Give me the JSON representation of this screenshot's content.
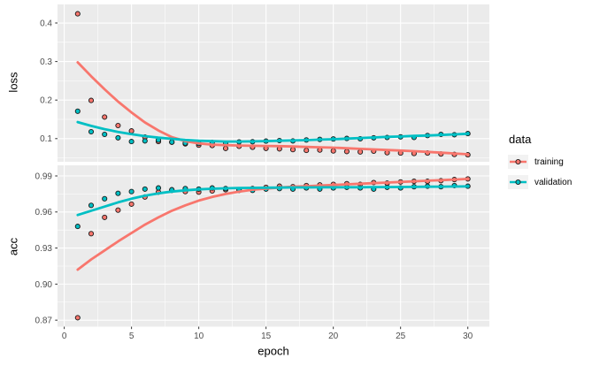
{
  "chart_data": {
    "type": "scatter",
    "smoother": "loess",
    "title": "",
    "xlabel": "epoch",
    "xlim": [
      -0.5,
      31.6
    ],
    "x": [
      1,
      2,
      3,
      4,
      5,
      6,
      7,
      8,
      9,
      10,
      11,
      12,
      13,
      14,
      15,
      16,
      17,
      18,
      19,
      20,
      21,
      22,
      23,
      24,
      25,
      26,
      27,
      28,
      29,
      30
    ],
    "x_ticks": {
      "major": [
        0,
        5,
        10,
        15,
        20,
        25,
        30
      ],
      "labels": [
        "0",
        "5",
        "10",
        "15",
        "20",
        "25",
        "30"
      ],
      "minor": [
        2.5,
        7.5,
        12.5,
        17.5,
        22.5,
        27.5
      ]
    },
    "legend": {
      "title": "data",
      "entries": [
        {
          "label": "training",
          "color": "#F8766D"
        },
        {
          "label": "validation",
          "color": "#00BFC4"
        }
      ]
    },
    "panel_bg": "#EBEBEB",
    "grid_color": "#FFFFFF",
    "tick_color": "#333333",
    "tick_label_color": "#4D4D4D",
    "panels": [
      {
        "name": "loss",
        "ylabel": "loss",
        "ylim": [
          0.0399,
          0.4482
        ],
        "y_ticks": {
          "major": [
            0.1,
            0.2,
            0.3,
            0.4
          ],
          "labels": [
            "0.1",
            "0.2",
            "0.3",
            "0.4"
          ],
          "minor": [
            0.05,
            0.15,
            0.25,
            0.35
          ]
        },
        "series": [
          {
            "name": "training",
            "color": "#F8766D",
            "points": [
              0.424,
              0.199,
              0.156,
              0.134,
              0.12,
              0.104,
              0.0925,
              0.0905,
              0.0865,
              0.083,
              0.082,
              0.0745,
              0.08,
              0.0775,
              0.0745,
              0.0735,
              0.0715,
              0.0695,
              0.0705,
              0.068,
              0.0665,
              0.0655,
              0.0675,
              0.0635,
              0.0625,
              0.0615,
              0.0625,
              0.06,
              0.059,
              0.058
            ],
            "smooth": [
              0.298,
              0.262,
              0.228,
              0.196,
              0.168,
              0.142,
              0.121,
              0.104,
              0.0935,
              0.0875,
              0.0845,
              0.083,
              0.082,
              0.0815,
              0.081,
              0.0805,
              0.0795,
              0.0785,
              0.0775,
              0.0765,
              0.075,
              0.0735,
              0.072,
              0.0705,
              0.069,
              0.0675,
              0.0655,
              0.0635,
              0.0615,
              0.0595
            ]
          },
          {
            "name": "validation",
            "color": "#00BFC4",
            "points": [
              0.171,
              0.118,
              0.111,
              0.102,
              0.0925,
              0.094,
              0.096,
              0.091,
              0.0885,
              0.0875,
              0.09,
              0.088,
              0.0915,
              0.092,
              0.0935,
              0.095,
              0.094,
              0.0965,
              0.098,
              0.099,
              0.1005,
              0.0995,
              0.102,
              0.103,
              0.1045,
              0.103,
              0.108,
              0.111,
              0.11,
              0.113
            ],
            "smooth": [
              0.143,
              0.133,
              0.1245,
              0.1175,
              0.1115,
              0.1065,
              0.1025,
              0.0995,
              0.0965,
              0.0945,
              0.0935,
              0.0925,
              0.0925,
              0.093,
              0.0935,
              0.0945,
              0.0955,
              0.096,
              0.0975,
              0.0985,
              0.1,
              0.1015,
              0.103,
              0.1045,
              0.1055,
              0.107,
              0.108,
              0.1095,
              0.111,
              0.1125
            ]
          }
        ]
      },
      {
        "name": "acc",
        "ylabel": "acc",
        "ylim": [
          0.8646,
          0.99882
        ],
        "y_ticks": {
          "major": [
            0.87,
            0.9,
            0.93,
            0.96,
            0.99
          ],
          "labels": [
            "0.87",
            "0.90",
            "0.93",
            "0.96",
            "0.99"
          ],
          "minor": [
            0.885,
            0.915,
            0.945,
            0.975
          ]
        },
        "series": [
          {
            "name": "training",
            "color": "#F8766D",
            "points": [
              0.872,
              0.942,
              0.9555,
              0.9615,
              0.9665,
              0.9725,
              0.9765,
              0.978,
              0.977,
              0.9765,
              0.9775,
              0.9785,
              0.978,
              0.9795,
              0.9805,
              0.9815,
              0.981,
              0.982,
              0.9825,
              0.983,
              0.9835,
              0.983,
              0.9845,
              0.984,
              0.985,
              0.9855,
              0.9855,
              0.986,
              0.987,
              0.9875
            ],
            "smooth": [
              0.912,
              0.9205,
              0.928,
              0.9355,
              0.9425,
              0.9495,
              0.9555,
              0.961,
              0.9655,
              0.9695,
              0.9725,
              0.975,
              0.977,
              0.9785,
              0.9795,
              0.9803,
              0.981,
              0.9815,
              0.982,
              0.9825,
              0.983,
              0.9835,
              0.984,
              0.9845,
              0.985,
              0.9855,
              0.986,
              0.9865,
              0.987,
              0.9875
            ]
          },
          {
            "name": "validation",
            "color": "#00BFC4",
            "points": [
              0.948,
              0.9655,
              0.971,
              0.9755,
              0.977,
              0.979,
              0.98,
              0.9785,
              0.9795,
              0.979,
              0.98,
              0.9795,
              0.9785,
              0.978,
              0.979,
              0.9795,
              0.979,
              0.98,
              0.979,
              0.98,
              0.9805,
              0.98,
              0.979,
              0.9805,
              0.98,
              0.981,
              0.9815,
              0.981,
              0.982,
              0.9815
            ],
            "smooth": [
              0.9575,
              0.961,
              0.9645,
              0.968,
              0.971,
              0.9735,
              0.9755,
              0.977,
              0.978,
              0.9788,
              0.9793,
              0.9797,
              0.98,
              0.9801,
              0.9802,
              0.9803,
              0.9804,
              0.9804,
              0.9805,
              0.9805,
              0.9806,
              0.9806,
              0.9807,
              0.9807,
              0.9808,
              0.9809,
              0.981,
              0.9811,
              0.9812,
              0.9813
            ]
          }
        ]
      }
    ]
  }
}
